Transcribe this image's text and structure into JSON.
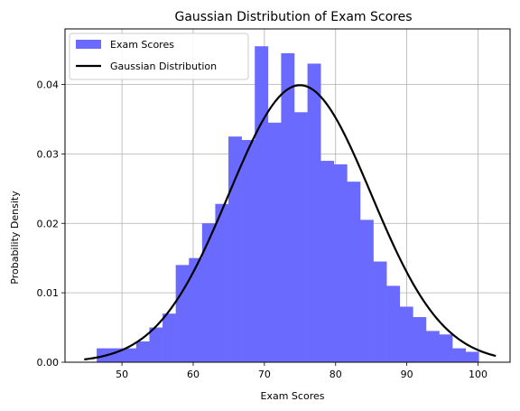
{
  "chart_data": {
    "type": "bar",
    "title": "Gaussian Distribution of Exam Scores",
    "xlabel": "Exam Scores",
    "ylabel": "Probability Density",
    "xlim": [
      42.0,
      104.5
    ],
    "ylim": [
      0,
      0.048
    ],
    "xticks": [
      50,
      60,
      70,
      80,
      90,
      100
    ],
    "yticks": [
      0.0,
      0.01,
      0.02,
      0.03,
      0.04
    ],
    "ytick_labels": [
      "0.00",
      "0.01",
      "0.02",
      "0.03",
      "0.04"
    ],
    "grid": true,
    "legend_position": "top-left",
    "histogram": {
      "name": "Exam Scores",
      "color": "#6a6aff",
      "bin_start": 46.45,
      "bin_width": 1.85,
      "densities": [
        0.002,
        0.002,
        0.002,
        0.003,
        0.005,
        0.007,
        0.014,
        0.015,
        0.02,
        0.0228,
        0.0325,
        0.032,
        0.0455,
        0.0345,
        0.0445,
        0.036,
        0.043,
        0.029,
        0.0285,
        0.026,
        0.0205,
        0.0145,
        0.011,
        0.008,
        0.0065,
        0.0045,
        0.004,
        0.002,
        0.0015
      ]
    },
    "curve": {
      "name": "Gaussian Distribution",
      "color": "#000000",
      "mean": 75,
      "std": 10,
      "x_range": [
        44.7,
        102.5
      ]
    }
  }
}
